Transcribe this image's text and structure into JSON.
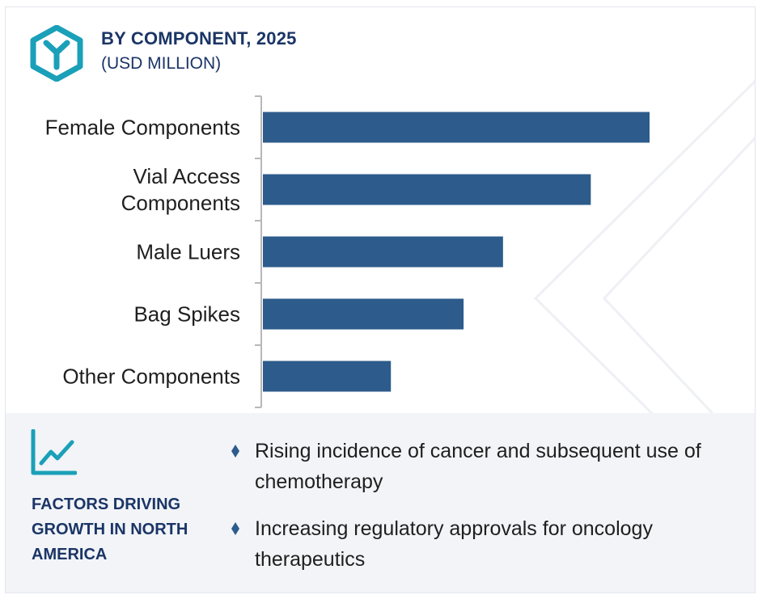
{
  "header": {
    "title": "BY COMPONENT, 2025",
    "subtitle": "(USD MILLION)",
    "icon": "hexagon-y-icon"
  },
  "colors": {
    "bar": "#2d5b8b",
    "title": "#1b3566",
    "accent": "#1aa0b8",
    "footer_bg": "#f2f4f8"
  },
  "chart_data": {
    "type": "bar",
    "orientation": "horizontal",
    "title": "BY COMPONENT, 2025",
    "subtitle": "(USD MILLION)",
    "categories": [
      [
        "Female Components"
      ],
      [
        "Vial Access",
        "Components"
      ],
      [
        "Male Luers"
      ],
      [
        "Bag Spikes"
      ],
      [
        "Other Components"
      ]
    ],
    "values": [
      100,
      84.8,
      62.1,
      51.9,
      33.1
    ],
    "values_note_unit": "",
    "xlim": [
      0,
      100
    ],
    "grid": false,
    "value_labels": false
  },
  "footer": {
    "icon": "trend-line-icon",
    "title": "FACTORS DRIVING GROWTH IN NORTH AMERICA",
    "bullets": [
      "Rising incidence of cancer and subsequent use of chemotherapy",
      "Increasing regulatory approvals for oncology therapeutics"
    ],
    "bullet_icon": "diamond-bullet-icon"
  }
}
